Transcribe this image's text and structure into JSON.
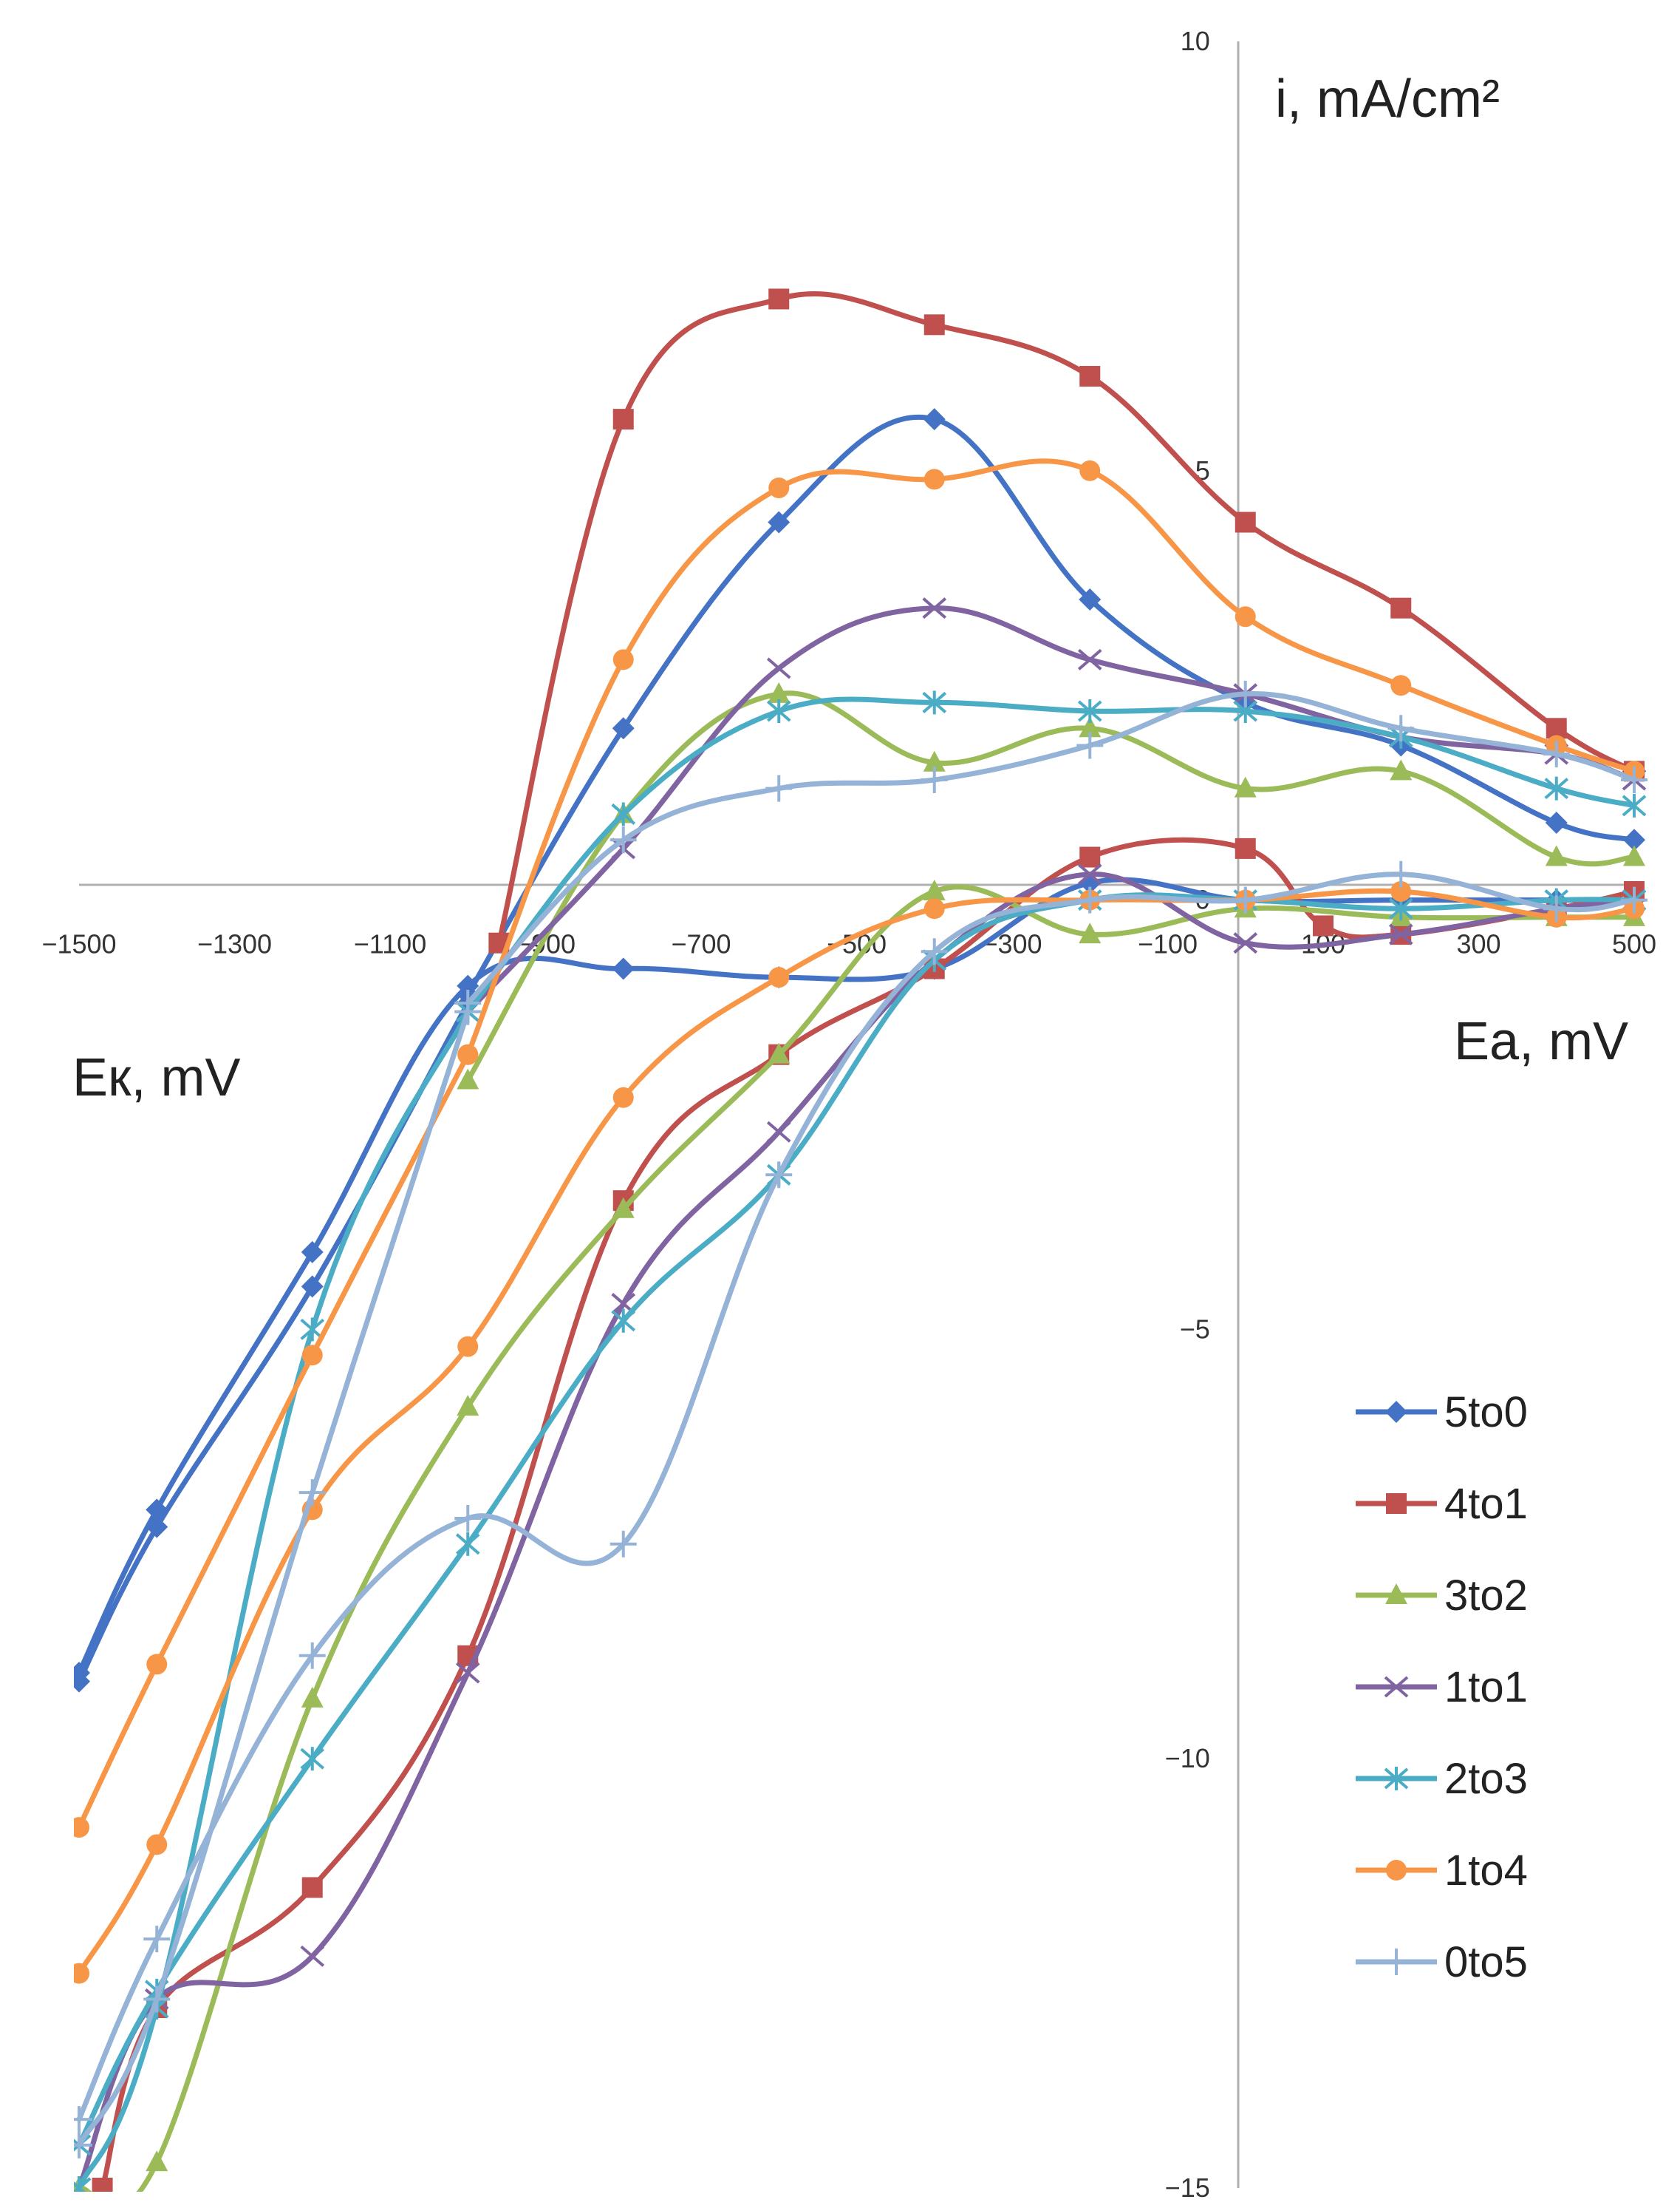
{
  "chart_data": {
    "type": "line",
    "ylabel": "i, mA/cm²",
    "xlabel_left": "Eк, mV",
    "xlabel_right": "Eа, mV",
    "x_ticks": [
      "−1500",
      "−1300",
      "−1100",
      "−900",
      "−700",
      "−500",
      "−300",
      "−100",
      "100",
      "300",
      "500"
    ],
    "y_ticks": [
      "10",
      "5",
      "0",
      "−5",
      "−10",
      "−15"
    ],
    "xlim": [
      -1500,
      500
    ],
    "ylim": [
      -15,
      10
    ],
    "grid": false,
    "legend_position": "right",
    "series": [
      {
        "name": "5to0",
        "color": "#4472C4",
        "marker": "diamond",
        "anodic": [
          [
            -1000,
            -1.1
          ],
          [
            -800,
            2.0
          ],
          [
            -600,
            4.4
          ],
          [
            -400,
            5.6
          ],
          [
            -200,
            3.5
          ],
          [
            0,
            2.3
          ],
          [
            200,
            1.8
          ],
          [
            400,
            0.9
          ],
          [
            500,
            0.7
          ]
        ],
        "cathodic": [
          [
            -1500,
            -9.0
          ],
          [
            -1400,
            -7.1
          ],
          [
            -1200,
            -4.1
          ],
          [
            -1000,
            -1.0
          ],
          [
            -800,
            -0.8
          ],
          [
            -600,
            -0.9
          ],
          [
            -400,
            -0.8
          ],
          [
            -200,
            0.2
          ],
          [
            0,
            0
          ],
          [
            200,
            0
          ],
          [
            400,
            0
          ],
          [
            500,
            0
          ]
        ],
        "cathodic2": [
          [
            -1500,
            -9.1
          ],
          [
            -1400,
            -7.3
          ],
          [
            -1200,
            -4.5
          ],
          [
            -1000,
            -1.2
          ]
        ]
      },
      {
        "name": "4to1",
        "color": "#C0504D",
        "marker": "square",
        "anodic": [
          [
            -960,
            -0.5
          ],
          [
            -800,
            5.6
          ],
          [
            -600,
            7.0
          ],
          [
            -400,
            6.7
          ],
          [
            -200,
            6.1
          ],
          [
            0,
            4.4
          ],
          [
            200,
            3.4
          ],
          [
            400,
            2.0
          ],
          [
            500,
            1.5
          ]
        ],
        "cathodic": [
          [
            -1470,
            -15
          ],
          [
            -1400,
            -12.9
          ],
          [
            -1200,
            -11.5
          ],
          [
            -1000,
            -8.8
          ],
          [
            -800,
            -3.5
          ],
          [
            -600,
            -1.8
          ],
          [
            -400,
            -0.8
          ],
          [
            -200,
            0.5
          ],
          [
            0,
            0.6
          ],
          [
            100,
            -0.3
          ],
          [
            200,
            -0.4
          ],
          [
            400,
            -0.1
          ],
          [
            500,
            0.1
          ]
        ]
      },
      {
        "name": "3to2",
        "color": "#9BBB59",
        "marker": "triangle",
        "anodic": [
          [
            -1000,
            -2.1
          ],
          [
            -800,
            1.0
          ],
          [
            -600,
            2.4
          ],
          [
            -400,
            1.6
          ],
          [
            -200,
            2.0
          ],
          [
            0,
            1.3
          ],
          [
            200,
            1.5
          ],
          [
            400,
            0.5
          ],
          [
            500,
            0.5
          ]
        ],
        "cathodic": [
          [
            -1500,
            -15
          ],
          [
            -1400,
            -14.7
          ],
          [
            -1200,
            -9.3
          ],
          [
            -1000,
            -5.9
          ],
          [
            -800,
            -3.6
          ],
          [
            -600,
            -1.8
          ],
          [
            -400,
            0.1
          ],
          [
            -200,
            -0.4
          ],
          [
            0,
            -0.1
          ],
          [
            200,
            -0.2
          ],
          [
            400,
            -0.2
          ],
          [
            500,
            -0.2
          ]
        ]
      },
      {
        "name": "1to1",
        "color": "#8064A2",
        "marker": "x",
        "anodic": [
          [
            -1000,
            -1.3
          ],
          [
            -800,
            0.6
          ],
          [
            -600,
            2.7
          ],
          [
            -400,
            3.4
          ],
          [
            -200,
            2.8
          ],
          [
            0,
            2.4
          ],
          [
            200,
            1.9
          ],
          [
            400,
            1.7
          ],
          [
            500,
            1.4
          ]
        ],
        "cathodic": [
          [
            -1500,
            -15
          ],
          [
            -1400,
            -12.8
          ],
          [
            -1200,
            -12.3
          ],
          [
            -1000,
            -9.0
          ],
          [
            -800,
            -4.7
          ],
          [
            -600,
            -2.7
          ],
          [
            -400,
            -0.7
          ],
          [
            -200,
            0.3
          ],
          [
            0,
            -0.5
          ],
          [
            200,
            -0.4
          ],
          [
            400,
            -0.1
          ],
          [
            500,
            0
          ]
        ]
      },
      {
        "name": "2to3",
        "color": "#4BACC6",
        "marker": "asterisk",
        "anodic": [
          [
            -1000,
            -1.3
          ],
          [
            -800,
            1.0
          ],
          [
            -600,
            2.2
          ],
          [
            -400,
            2.3
          ],
          [
            -200,
            2.2
          ],
          [
            0,
            2.2
          ],
          [
            200,
            1.9
          ],
          [
            400,
            1.3
          ],
          [
            500,
            1.1
          ]
        ],
        "cathodic": [
          [
            -1500,
            -14.5
          ],
          [
            -1400,
            -12.7
          ],
          [
            -1200,
            -10.0
          ],
          [
            -1000,
            -7.5
          ],
          [
            -800,
            -4.9
          ],
          [
            -600,
            -3.2
          ],
          [
            -400,
            -0.7
          ],
          [
            -200,
            0
          ],
          [
            0,
            0
          ],
          [
            200,
            -0.1
          ],
          [
            400,
            0
          ],
          [
            500,
            0
          ]
        ],
        "cathodic2": [
          [
            -1500,
            -15
          ],
          [
            -1400,
            -12.9
          ],
          [
            -1200,
            -5.0
          ],
          [
            -1000,
            -1.3
          ]
        ]
      },
      {
        "name": "1to4",
        "color": "#F79646",
        "marker": "circle",
        "anodic": [
          [
            -1000,
            -1.8
          ],
          [
            -800,
            2.8
          ],
          [
            -600,
            4.8
          ],
          [
            -400,
            4.9
          ],
          [
            -200,
            5.0
          ],
          [
            0,
            3.3
          ],
          [
            200,
            2.5
          ],
          [
            400,
            1.8
          ],
          [
            500,
            1.5
          ]
        ],
        "cathodic": [
          [
            -1500,
            -10.8
          ],
          [
            -1400,
            -8.9
          ],
          [
            -1200,
            -5.3
          ],
          [
            -1000,
            -1.8
          ]
        ],
        "cathodic2": [
          [
            -1500,
            -12.5
          ],
          [
            -1400,
            -11.0
          ],
          [
            -1200,
            -7.1
          ],
          [
            -1000,
            -5.2
          ],
          [
            -800,
            -2.3
          ],
          [
            -600,
            -0.9
          ],
          [
            -400,
            -0.1
          ],
          [
            -200,
            0
          ],
          [
            0,
            0
          ],
          [
            200,
            0.1
          ],
          [
            400,
            -0.2
          ],
          [
            500,
            -0.1
          ]
        ]
      },
      {
        "name": "0to5",
        "color": "#95B3D7",
        "marker": "plus",
        "anodic": [
          [
            -1000,
            -1.2
          ],
          [
            -800,
            0.7
          ],
          [
            -600,
            1.3
          ],
          [
            -400,
            1.4
          ],
          [
            -200,
            1.8
          ],
          [
            0,
            2.4
          ],
          [
            200,
            2.0
          ],
          [
            400,
            1.7
          ],
          [
            500,
            1.4
          ]
        ],
        "cathodic": [
          [
            -1500,
            -14.2
          ],
          [
            -1400,
            -12.1
          ],
          [
            -1200,
            -8.8
          ],
          [
            -1000,
            -7.2
          ],
          [
            -800,
            -7.5
          ],
          [
            -600,
            -3.2
          ],
          [
            -400,
            -0.6
          ],
          [
            -200,
            0
          ],
          [
            0,
            0
          ],
          [
            200,
            0.3
          ],
          [
            400,
            -0.1
          ],
          [
            500,
            0
          ]
        ],
        "cathodic2": [
          [
            -1500,
            -14.5
          ],
          [
            -1400,
            -12.8
          ],
          [
            -1200,
            -6.9
          ],
          [
            -1000,
            -1.3
          ]
        ]
      }
    ]
  }
}
